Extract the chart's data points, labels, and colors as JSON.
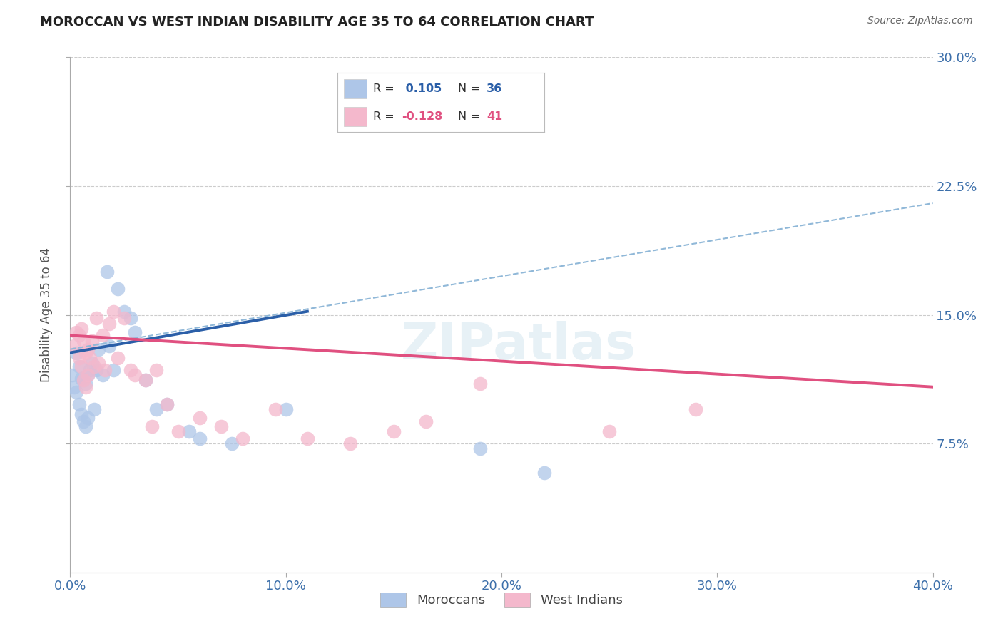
{
  "title": "MOROCCAN VS WEST INDIAN DISABILITY AGE 35 TO 64 CORRELATION CHART",
  "source": "Source: ZipAtlas.com",
  "ylabel": "Disability Age 35 to 64",
  "xlim": [
    0.0,
    0.4
  ],
  "ylim": [
    0.0,
    0.3
  ],
  "yticks_right": [
    0.075,
    0.15,
    0.225,
    0.3
  ],
  "ytick_labels_right": [
    "7.5%",
    "15.0%",
    "22.5%",
    "30.0%"
  ],
  "xticks": [
    0.0,
    0.1,
    0.2,
    0.3,
    0.4
  ],
  "xtick_labels": [
    "0.0%",
    "10.0%",
    "20.0%",
    "30.0%",
    "40.0%"
  ],
  "moroccan_R": 0.105,
  "moroccan_N": 36,
  "westindian_R": -0.128,
  "westindian_N": 41,
  "moroccan_color": "#aec6e8",
  "moroccan_line_color": "#2b5fa8",
  "westindian_color": "#f4b8cc",
  "westindian_line_color": "#e05080",
  "dashed_line_color": "#90b8d8",
  "watermark": "ZIPatlas",
  "moroccan_x": [
    0.001,
    0.002,
    0.003,
    0.003,
    0.004,
    0.004,
    0.005,
    0.005,
    0.006,
    0.006,
    0.007,
    0.007,
    0.008,
    0.008,
    0.009,
    0.01,
    0.011,
    0.012,
    0.013,
    0.015,
    0.017,
    0.018,
    0.02,
    0.022,
    0.025,
    0.028,
    0.03,
    0.035,
    0.04,
    0.045,
    0.055,
    0.06,
    0.075,
    0.1,
    0.19,
    0.22
  ],
  "moroccan_y": [
    0.115,
    0.108,
    0.128,
    0.105,
    0.12,
    0.098,
    0.113,
    0.092,
    0.112,
    0.088,
    0.11,
    0.085,
    0.115,
    0.09,
    0.118,
    0.122,
    0.095,
    0.118,
    0.13,
    0.115,
    0.175,
    0.132,
    0.118,
    0.165,
    0.152,
    0.148,
    0.14,
    0.112,
    0.095,
    0.098,
    0.082,
    0.078,
    0.075,
    0.095,
    0.072,
    0.058
  ],
  "westindian_x": [
    0.002,
    0.003,
    0.004,
    0.004,
    0.005,
    0.005,
    0.006,
    0.006,
    0.007,
    0.007,
    0.008,
    0.008,
    0.009,
    0.01,
    0.011,
    0.012,
    0.013,
    0.015,
    0.016,
    0.018,
    0.02,
    0.022,
    0.025,
    0.028,
    0.03,
    0.035,
    0.038,
    0.04,
    0.045,
    0.05,
    0.06,
    0.07,
    0.08,
    0.095,
    0.11,
    0.13,
    0.15,
    0.165,
    0.19,
    0.25,
    0.29
  ],
  "westindian_y": [
    0.132,
    0.14,
    0.138,
    0.125,
    0.142,
    0.12,
    0.135,
    0.112,
    0.128,
    0.108,
    0.13,
    0.115,
    0.125,
    0.135,
    0.12,
    0.148,
    0.122,
    0.138,
    0.118,
    0.145,
    0.152,
    0.125,
    0.148,
    0.118,
    0.115,
    0.112,
    0.085,
    0.118,
    0.098,
    0.082,
    0.09,
    0.085,
    0.078,
    0.095,
    0.078,
    0.075,
    0.082,
    0.088,
    0.11,
    0.082,
    0.095
  ],
  "moroccan_line_x": [
    0.0,
    0.11
  ],
  "moroccan_line_y": [
    0.128,
    0.152
  ],
  "westindian_line_x": [
    0.0,
    0.4
  ],
  "westindian_line_y": [
    0.138,
    0.108
  ],
  "dashed_line_x": [
    0.0,
    0.4
  ],
  "dashed_line_y": [
    0.13,
    0.215
  ]
}
